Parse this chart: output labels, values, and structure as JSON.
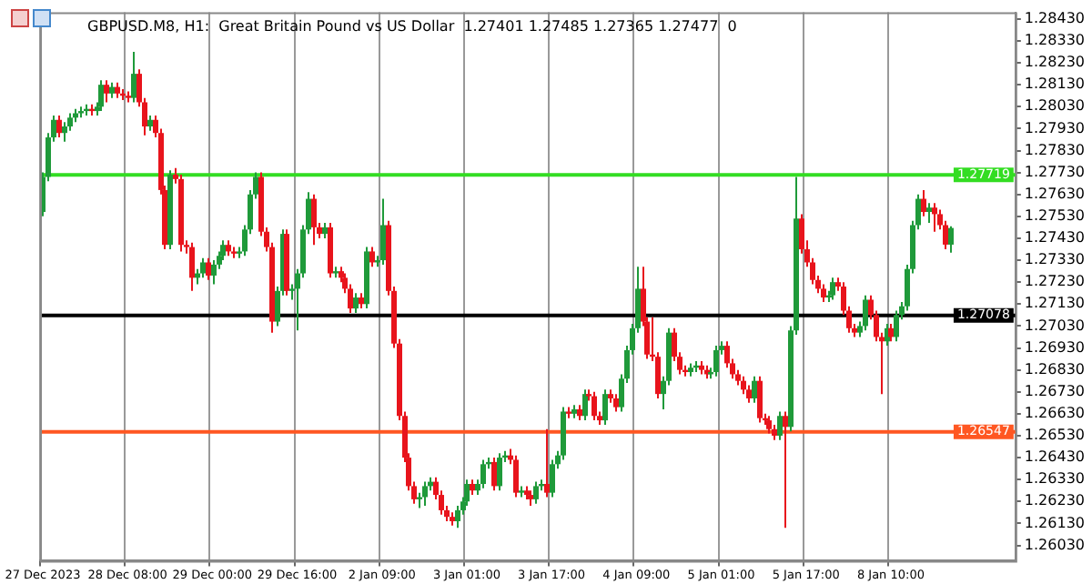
{
  "chart_data": {
    "type": "candlestick",
    "title": "GBPUSD.M8, H1:  Great Britain Pound vs US Dollar  1.27401 1.27485 1.27365 1.27477  0",
    "categories": [
      "27 Dec 2023",
      null,
      null,
      null,
      null,
      null,
      null,
      null,
      null,
      null,
      null,
      null,
      null,
      null,
      null,
      null,
      "28 Dec 08:00",
      null,
      null,
      null,
      null,
      null,
      null,
      null,
      null,
      null,
      null,
      null,
      null,
      null,
      null,
      null,
      "29 Dec 00:00",
      null,
      null,
      null,
      null,
      null,
      null,
      null,
      null,
      null,
      null,
      null,
      null,
      null,
      null,
      null,
      "29 Dec 16:00",
      null,
      null,
      null,
      null,
      null,
      null,
      null,
      null,
      null,
      null,
      null,
      null,
      null,
      null,
      null,
      "2 Jan 09:00",
      null,
      null,
      null,
      null,
      null,
      null,
      null,
      null,
      null,
      null,
      null,
      null,
      null,
      null,
      null,
      "3 Jan 01:00",
      null,
      null,
      null,
      null,
      null,
      null,
      null,
      null,
      null,
      null,
      null,
      null,
      null,
      null,
      null,
      "3 Jan 17:00",
      null,
      null,
      null,
      null,
      null,
      null,
      null,
      null,
      null,
      null,
      null,
      null,
      null,
      null,
      null,
      "4 Jan 09:00",
      null,
      null,
      null,
      null,
      null,
      null,
      null,
      null,
      null,
      null,
      null,
      null,
      null,
      null,
      null,
      "5 Jan 01:00",
      null,
      null,
      null,
      null,
      null,
      null,
      null,
      null,
      null,
      null,
      null,
      null,
      null,
      null,
      null,
      "5 Jan 17:00",
      null,
      null,
      null,
      null,
      null,
      null,
      null,
      null,
      null,
      null,
      null,
      null,
      null,
      null,
      null,
      "8 Jan 10:00",
      null,
      null,
      null,
      null,
      null,
      null,
      null,
      null,
      null,
      null,
      null
    ],
    "ohlc": [
      [
        1.2755,
        1.2773,
        1.2753,
        1.2771
      ],
      [
        1.2771,
        1.2791,
        1.2769,
        1.2789
      ],
      [
        1.2789,
        1.2799,
        1.2787,
        1.2797
      ],
      [
        1.2797,
        1.2799,
        1.2789,
        1.2791
      ],
      [
        1.2791,
        1.2796,
        1.2787,
        1.2794
      ],
      [
        1.2794,
        1.28,
        1.2792,
        1.2798
      ],
      [
        1.2798,
        1.2802,
        1.2796,
        1.28
      ],
      [
        1.28,
        1.2803,
        1.2798,
        1.2801
      ],
      [
        1.2801,
        1.2804,
        1.2799,
        1.2802
      ],
      [
        1.2802,
        1.2804,
        1.2799,
        1.2801
      ],
      [
        1.2801,
        1.2805,
        1.2799,
        1.2803
      ],
      [
        1.2803,
        1.2815,
        1.2801,
        1.2813
      ],
      [
        1.2813,
        1.2815,
        1.2805,
        1.2809
      ],
      [
        1.2809,
        1.2814,
        1.2807,
        1.2812
      ],
      [
        1.2812,
        1.2814,
        1.2807,
        1.2809
      ],
      [
        1.2809,
        1.2811,
        1.2806,
        1.2808
      ],
      [
        1.2808,
        1.281,
        1.2805,
        1.2807
      ],
      [
        1.2807,
        1.2828,
        1.2805,
        1.2818
      ],
      [
        1.2818,
        1.282,
        1.2803,
        1.2805
      ],
      [
        1.2805,
        1.2807,
        1.279,
        1.2794
      ],
      [
        1.2794,
        1.2799,
        1.2792,
        1.2797
      ],
      [
        1.2797,
        1.2799,
        1.2789,
        1.2791
      ],
      [
        1.2791,
        1.2793,
        1.2763,
        1.2765
      ],
      [
        1.2765,
        1.2767,
        1.2738,
        1.274
      ],
      [
        1.274,
        1.2774,
        1.2738,
        1.2772
      ],
      [
        1.2772,
        1.2775,
        1.2768,
        1.277
      ],
      [
        1.277,
        1.2772,
        1.2737,
        1.274
      ],
      [
        1.274,
        1.2742,
        1.2736,
        1.2739
      ],
      [
        1.2739,
        1.2741,
        1.2719,
        1.2725
      ],
      [
        1.2725,
        1.2729,
        1.2722,
        1.2727
      ],
      [
        1.2727,
        1.2734,
        1.2725,
        1.2732
      ],
      [
        1.2732,
        1.2734,
        1.2724,
        1.2726
      ],
      [
        1.2726,
        1.2733,
        1.2722,
        1.2731
      ],
      [
        1.2731,
        1.2737,
        1.2729,
        1.2735
      ],
      [
        1.2735,
        1.2742,
        1.2733,
        1.274
      ],
      [
        1.274,
        1.2742,
        1.2735,
        1.2737
      ],
      [
        1.2737,
        1.2739,
        1.2734,
        1.2736
      ],
      [
        1.2736,
        1.2739,
        1.2734,
        1.2737
      ],
      [
        1.2737,
        1.2749,
        1.2735,
        1.2747
      ],
      [
        1.2747,
        1.2765,
        1.2745,
        1.2763
      ],
      [
        1.2763,
        1.2773,
        1.2761,
        1.2771
      ],
      [
        1.2771,
        1.2773,
        1.2744,
        1.2746
      ],
      [
        1.2746,
        1.2748,
        1.2737,
        1.2739
      ],
      [
        1.2739,
        1.2741,
        1.27,
        1.2705
      ],
      [
        1.2705,
        1.2721,
        1.2703,
        1.2719
      ],
      [
        1.2719,
        1.2747,
        1.2717,
        1.2745
      ],
      [
        1.2745,
        1.2747,
        1.2717,
        1.2719
      ],
      [
        1.2719,
        1.2722,
        1.2715,
        1.272
      ],
      [
        1.272,
        1.2729,
        1.2701,
        1.2727
      ],
      [
        1.2727,
        1.2749,
        1.2725,
        1.2747
      ],
      [
        1.2747,
        1.2764,
        1.2745,
        1.2761
      ],
      [
        1.2761,
        1.2763,
        1.274,
        1.2748
      ],
      [
        1.2748,
        1.275,
        1.2743,
        1.2745
      ],
      [
        1.2745,
        1.275,
        1.2743,
        1.2748
      ],
      [
        1.2748,
        1.275,
        1.2725,
        1.2727
      ],
      [
        1.2727,
        1.273,
        1.2725,
        1.2728
      ],
      [
        1.2728,
        1.273,
        1.2723,
        1.2725
      ],
      [
        1.2725,
        1.2727,
        1.2718,
        1.272
      ],
      [
        1.272,
        1.2722,
        1.2709,
        1.2711
      ],
      [
        1.2711,
        1.2718,
        1.2709,
        1.2716
      ],
      [
        1.2716,
        1.2718,
        1.2711,
        1.2713
      ],
      [
        1.2713,
        1.2739,
        1.2711,
        1.2737
      ],
      [
        1.2737,
        1.2739,
        1.273,
        1.2732
      ],
      [
        1.2732,
        1.2735,
        1.273,
        1.2733
      ],
      [
        1.2733,
        1.2761,
        1.2731,
        1.2749
      ],
      [
        1.2749,
        1.2751,
        1.2717,
        1.2719
      ],
      [
        1.2719,
        1.2721,
        1.2693,
        1.2695
      ],
      [
        1.2695,
        1.2697,
        1.266,
        1.2662
      ],
      [
        1.2662,
        1.2664,
        1.2641,
        1.2643
      ],
      [
        1.2643,
        1.2645,
        1.2628,
        1.263
      ],
      [
        1.263,
        1.2632,
        1.2622,
        1.2624
      ],
      [
        1.2624,
        1.2627,
        1.262,
        1.2625
      ],
      [
        1.2625,
        1.2632,
        1.2621,
        1.263
      ],
      [
        1.263,
        1.2634,
        1.2628,
        1.2632
      ],
      [
        1.2632,
        1.2634,
        1.2624,
        1.2626
      ],
      [
        1.2626,
        1.2628,
        1.2617,
        1.2619
      ],
      [
        1.2619,
        1.2621,
        1.2614,
        1.2616
      ],
      [
        1.2616,
        1.2618,
        1.2612,
        1.2614
      ],
      [
        1.2614,
        1.2621,
        1.2611,
        1.2619
      ],
      [
        1.2619,
        1.2625,
        1.2617,
        1.2623
      ],
      [
        1.2623,
        1.2633,
        1.2621,
        1.2631
      ],
      [
        1.2631,
        1.2633,
        1.2626,
        1.2628
      ],
      [
        1.2628,
        1.2633,
        1.2626,
        1.2631
      ],
      [
        1.2631,
        1.2642,
        1.2629,
        1.264
      ],
      [
        1.264,
        1.2643,
        1.2638,
        1.2641
      ],
      [
        1.2641,
        1.2643,
        1.2628,
        1.263
      ],
      [
        1.263,
        1.2645,
        1.2628,
        1.2643
      ],
      [
        1.2643,
        1.2646,
        1.2641,
        1.2644
      ],
      [
        1.2644,
        1.2647,
        1.264,
        1.2642
      ],
      [
        1.2642,
        1.2644,
        1.2625,
        1.2627
      ],
      [
        1.2627,
        1.263,
        1.2625,
        1.2628
      ],
      [
        1.2628,
        1.263,
        1.2624,
        1.2626
      ],
      [
        1.2626,
        1.2628,
        1.2621,
        1.2624
      ],
      [
        1.2624,
        1.2632,
        1.2622,
        1.263
      ],
      [
        1.263,
        1.2633,
        1.2628,
        1.2631
      ],
      [
        1.2631,
        1.2656,
        1.2625,
        1.2627
      ],
      [
        1.2627,
        1.2642,
        1.2625,
        1.264
      ],
      [
        1.264,
        1.2646,
        1.2638,
        1.2644
      ],
      [
        1.2644,
        1.2666,
        1.2642,
        1.2664
      ],
      [
        1.2664,
        1.2666,
        1.2661,
        1.2663
      ],
      [
        1.2663,
        1.2667,
        1.2661,
        1.2665
      ],
      [
        1.2665,
        1.2667,
        1.266,
        1.2662
      ],
      [
        1.2662,
        1.2674,
        1.266,
        1.2672
      ],
      [
        1.2672,
        1.2674,
        1.2669,
        1.2671
      ],
      [
        1.2671,
        1.2673,
        1.266,
        1.2662
      ],
      [
        1.2662,
        1.2664,
        1.2658,
        1.266
      ],
      [
        1.266,
        1.2674,
        1.2658,
        1.2672
      ],
      [
        1.2672,
        1.2674,
        1.2668,
        1.267
      ],
      [
        1.267,
        1.2672,
        1.2664,
        1.2666
      ],
      [
        1.2666,
        1.2681,
        1.2664,
        1.2679
      ],
      [
        1.2679,
        1.2694,
        1.2677,
        1.2692
      ],
      [
        1.2692,
        1.2704,
        1.269,
        1.2702
      ],
      [
        1.2702,
        1.273,
        1.27,
        1.272
      ],
      [
        1.272,
        1.273,
        1.2703,
        1.2705
      ],
      [
        1.2705,
        1.2707,
        1.2688,
        1.269
      ],
      [
        1.269,
        1.2707,
        1.2687,
        1.2689
      ],
      [
        1.2689,
        1.2691,
        1.267,
        1.2672
      ],
      [
        1.2672,
        1.268,
        1.2665,
        1.2678
      ],
      [
        1.2678,
        1.2702,
        1.2676,
        1.27
      ],
      [
        1.27,
        1.2702,
        1.2687,
        1.2689
      ],
      [
        1.2689,
        1.2691,
        1.2681,
        1.2683
      ],
      [
        1.2683,
        1.2685,
        1.268,
        1.2682
      ],
      [
        1.2682,
        1.2686,
        1.268,
        1.2684
      ],
      [
        1.2684,
        1.2687,
        1.2682,
        1.2685
      ],
      [
        1.2685,
        1.2687,
        1.2681,
        1.2683
      ],
      [
        1.2683,
        1.2685,
        1.2679,
        1.2681
      ],
      [
        1.2681,
        1.2684,
        1.2679,
        1.2682
      ],
      [
        1.2682,
        1.2694,
        1.268,
        1.2692
      ],
      [
        1.2692,
        1.2696,
        1.269,
        1.2694
      ],
      [
        1.2694,
        1.2696,
        1.2684,
        1.2686
      ],
      [
        1.2686,
        1.2688,
        1.2679,
        1.2681
      ],
      [
        1.2681,
        1.2683,
        1.2676,
        1.2678
      ],
      [
        1.2678,
        1.268,
        1.2672,
        1.2674
      ],
      [
        1.2674,
        1.2676,
        1.2668,
        1.267
      ],
      [
        1.267,
        1.268,
        1.2668,
        1.2678
      ],
      [
        1.2678,
        1.268,
        1.2659,
        1.2661
      ],
      [
        1.2661,
        1.2663,
        1.2658,
        1.266
      ],
      [
        1.266,
        1.2662,
        1.2654,
        1.2656
      ],
      [
        1.2656,
        1.2658,
        1.2651,
        1.2653
      ],
      [
        1.2653,
        1.2664,
        1.2651,
        1.2662
      ],
      [
        1.2662,
        1.2664,
        1.2611,
        1.2657
      ],
      [
        1.2657,
        1.2703,
        1.2655,
        1.2701
      ],
      [
        1.2701,
        1.2771,
        1.2699,
        1.2752
      ],
      [
        1.2752,
        1.2754,
        1.2736,
        1.2738
      ],
      [
        1.2738,
        1.2742,
        1.273,
        1.2732
      ],
      [
        1.2732,
        1.2734,
        1.2722,
        1.2724
      ],
      [
        1.2724,
        1.2726,
        1.2718,
        1.272
      ],
      [
        1.272,
        1.2722,
        1.2714,
        1.2716
      ],
      [
        1.2716,
        1.2719,
        1.2714,
        1.2717
      ],
      [
        1.2717,
        1.2725,
        1.2715,
        1.2723
      ],
      [
        1.2723,
        1.2725,
        1.2719,
        1.2721
      ],
      [
        1.2721,
        1.2723,
        1.2708,
        1.271
      ],
      [
        1.271,
        1.2712,
        1.27,
        1.2702
      ],
      [
        1.2702,
        1.2704,
        1.2698,
        1.27
      ],
      [
        1.27,
        1.2705,
        1.2698,
        1.2703
      ],
      [
        1.2703,
        1.2717,
        1.2701,
        1.2715
      ],
      [
        1.2715,
        1.2717,
        1.2706,
        1.2708
      ],
      [
        1.2708,
        1.271,
        1.2696,
        1.2698
      ],
      [
        1.2698,
        1.27,
        1.2672,
        1.2696
      ],
      [
        1.2696,
        1.2704,
        1.2694,
        1.2702
      ],
      [
        1.2702,
        1.2704,
        1.2696,
        1.2698
      ],
      [
        1.2698,
        1.271,
        1.2696,
        1.2708
      ],
      [
        1.2708,
        1.2714,
        1.2706,
        1.2712
      ],
      [
        1.2712,
        1.2731,
        1.271,
        1.2729
      ],
      [
        1.2729,
        1.2751,
        1.2727,
        1.2749
      ],
      [
        1.2749,
        1.2763,
        1.2747,
        1.2761
      ],
      [
        1.2761,
        1.2765,
        1.2753,
        1.2755
      ],
      [
        1.2755,
        1.2759,
        1.275,
        1.2757
      ],
      [
        1.2757,
        1.2759,
        1.2746,
        1.2754
      ],
      [
        1.2754,
        1.2756,
        1.2747,
        1.2749
      ],
      [
        1.2749,
        1.2751,
        1.2738,
        1.27401
      ],
      [
        1.27401,
        1.27485,
        1.27365,
        1.27477
      ]
    ],
    "ylim": [
      1.2596,
      1.2846
    ],
    "yticks": [
      {
        "value": 1.2603,
        "label": "1.26030"
      },
      {
        "value": 1.2613,
        "label": "1.26130"
      },
      {
        "value": 1.2623,
        "label": "1.26230"
      },
      {
        "value": 1.2633,
        "label": "1.26330"
      },
      {
        "value": 1.2643,
        "label": "1.26430"
      },
      {
        "value": 1.2653,
        "label": "1.26530"
      },
      {
        "value": 1.2663,
        "label": "1.26630"
      },
      {
        "value": 1.2673,
        "label": "1.26730"
      },
      {
        "value": 1.2683,
        "label": "1.26830"
      },
      {
        "value": 1.2693,
        "label": "1.26930"
      },
      {
        "value": 1.2703,
        "label": "1.27030"
      },
      {
        "value": 1.2713,
        "label": "1.27130"
      },
      {
        "value": 1.2723,
        "label": "1.27230"
      },
      {
        "value": 1.2733,
        "label": "1.27330"
      },
      {
        "value": 1.2743,
        "label": "1.27430"
      },
      {
        "value": 1.2753,
        "label": "1.27530"
      },
      {
        "value": 1.2763,
        "label": "1.27630"
      },
      {
        "value": 1.2773,
        "label": "1.27730"
      },
      {
        "value": 1.2783,
        "label": "1.27830"
      },
      {
        "value": 1.2793,
        "label": "1.27930"
      },
      {
        "value": 1.2803,
        "label": "1.28030"
      },
      {
        "value": 1.2813,
        "label": "1.28130"
      },
      {
        "value": 1.2823,
        "label": "1.28230"
      },
      {
        "value": 1.2833,
        "label": "1.28330"
      },
      {
        "value": 1.2843,
        "label": "1.28430"
      }
    ],
    "grid": "x",
    "ref_lines": [
      {
        "axis": "y",
        "value": 1.27719,
        "label": "1.27719",
        "color": "#33dd22"
      },
      {
        "axis": "y",
        "value": 1.27078,
        "label": "1.27078",
        "color": "#000000"
      },
      {
        "axis": "y",
        "value": 1.26547,
        "label": "1.26547",
        "color": "#ff5722"
      }
    ]
  }
}
